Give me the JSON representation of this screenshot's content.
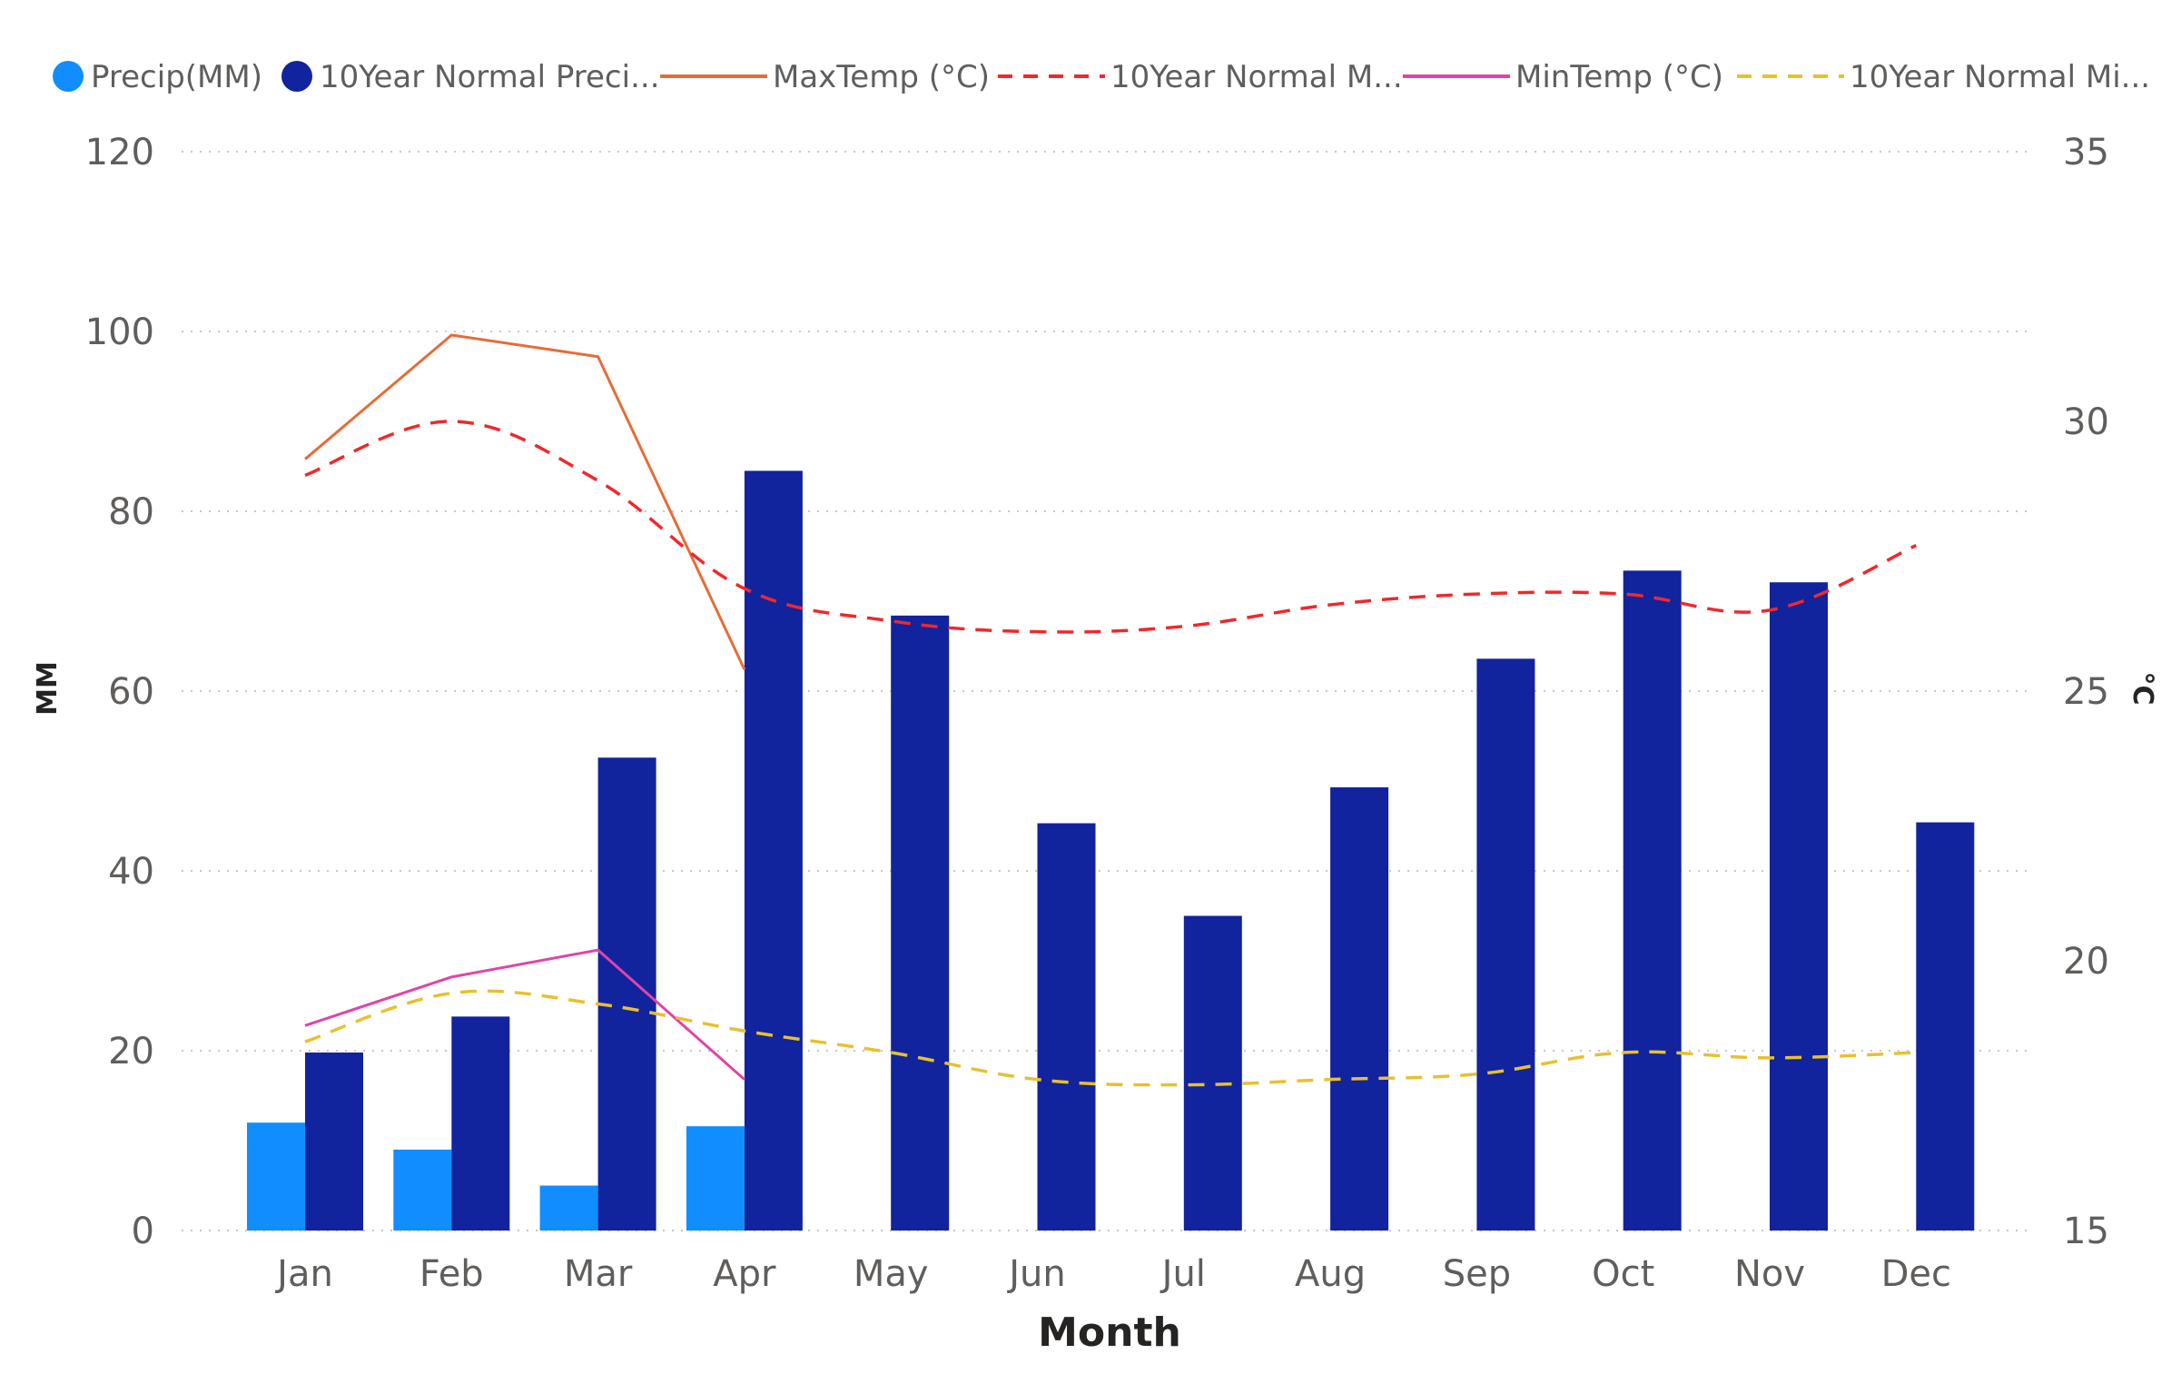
{
  "chart_data": {
    "type": "bar",
    "xlabel": "Month",
    "ylabel": "MM",
    "y2label": "°C",
    "ylim": [
      0,
      120
    ],
    "y2lim": [
      15,
      35
    ],
    "yticks": [
      "0",
      "20",
      "40",
      "60",
      "80",
      "100",
      "120"
    ],
    "y2ticks": [
      "15",
      "20",
      "25",
      "30",
      "35"
    ],
    "grid": true,
    "legend_position": "top",
    "categories": [
      "Jan",
      "Feb",
      "Mar",
      "Apr",
      "May",
      "Jun",
      "Jul",
      "Aug",
      "Sep",
      "Oct",
      "Nov",
      "Dec"
    ],
    "bar_series": [
      {
        "name": "Precip(MM)",
        "color": "#118DFF",
        "values": [
          12,
          9,
          5,
          11.6,
          null,
          null,
          null,
          null,
          null,
          null,
          null,
          null
        ]
      },
      {
        "name": "10Year Normal Preci...",
        "color": "#12239E",
        "values": [
          19.8,
          23.8,
          52.6,
          84.5,
          68.4,
          45.3,
          35,
          49.3,
          63.6,
          73.4,
          72.1,
          45.4
        ]
      }
    ],
    "line_series": [
      {
        "name": "MaxTemp (°C)",
        "color": "#E66C37",
        "style": "solid",
        "axis": "right",
        "values": [
          29.3,
          31.6,
          31.2,
          25.4,
          null,
          null,
          null,
          null,
          null,
          null,
          null,
          null
        ]
      },
      {
        "name": "10Year Normal M...",
        "color": "#F0282A",
        "style": "dashed",
        "axis": "right",
        "values": [
          29.0,
          30.0,
          28.9,
          26.9,
          26.3,
          26.1,
          26.2,
          26.6,
          26.8,
          26.8,
          26.5,
          27.7
        ]
      },
      {
        "name": "MinTemp (°C)",
        "color": "#E044A7",
        "style": "solid",
        "axis": "right",
        "values": [
          18.8,
          19.7,
          20.2,
          17.8,
          null,
          null,
          null,
          null,
          null,
          null,
          null,
          null
        ]
      },
      {
        "name": "10Year Normal Mi...",
        "color": "#E8C02F",
        "style": "dashed",
        "axis": "right",
        "values": [
          18.5,
          19.4,
          19.2,
          18.7,
          18.3,
          17.8,
          17.7,
          17.8,
          17.9,
          18.3,
          18.2,
          18.3
        ]
      }
    ]
  }
}
